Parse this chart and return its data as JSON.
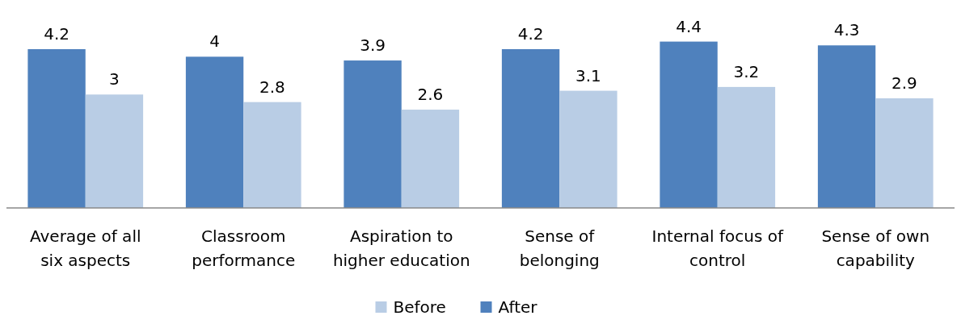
{
  "chart_data": {
    "type": "bar",
    "categories": [
      "Average of all six aspects",
      "Classroom performance",
      "Aspiration to higher education",
      "Sense of belonging",
      "Internal focus of control",
      "Sense of own capability"
    ],
    "series": [
      {
        "name": "After",
        "color": "#4f81bd",
        "values": [
          4.2,
          4,
          3.9,
          4.2,
          4.4,
          4.3
        ]
      },
      {
        "name": "Before",
        "color": "#b9cde5",
        "values": [
          3,
          2.8,
          2.6,
          3.1,
          3.2,
          2.9
        ]
      }
    ],
    "data_labels": true,
    "legend": "bottom",
    "grid": false
  }
}
